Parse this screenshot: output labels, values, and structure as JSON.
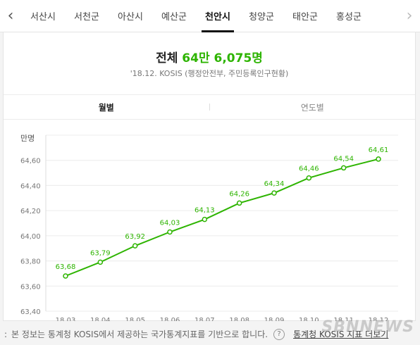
{
  "tabs": {
    "items": [
      "서산시",
      "서천군",
      "아산시",
      "예산군",
      "천안시",
      "청양군",
      "태안군",
      "홍성군"
    ],
    "active_index": 4
  },
  "summary": {
    "label": "전체",
    "value": "64만 6,075명",
    "source": "'18.12. KOSIS (행정안전부, 주민등록인구현황)"
  },
  "modes": {
    "monthly": "월별",
    "yearly": "연도별"
  },
  "footer": {
    "note": "본 정보는 통계청 KOSIS에서 제공하는 국가통계지표를 기반으로 합니다.",
    "link": "통계청 KOSIS 지표 더보기",
    "watermark": "SBNNEWS"
  },
  "colors": {
    "accent": "#2db400"
  },
  "chart_data": {
    "type": "line",
    "title": "",
    "unit": "만명",
    "xlabel": "",
    "ylabel": "",
    "ylim": [
      63.4,
      64.8
    ],
    "yticks": [
      "63,40",
      "63,60",
      "63,80",
      "64,00",
      "64,20",
      "64,40",
      "64,60"
    ],
    "categories": [
      "18,03",
      "18,04",
      "18,05",
      "18,06",
      "18,07",
      "18,08",
      "18,09",
      "18,10",
      "18,11",
      "18,12"
    ],
    "series": [
      {
        "values": [
          63.68,
          63.79,
          63.92,
          64.03,
          64.13,
          64.26,
          64.34,
          64.46,
          64.54,
          64.61
        ],
        "labels": [
          "63,68",
          "63,79",
          "63,92",
          "64,03",
          "64,13",
          "64,26",
          "64,34",
          "64,46",
          "64,54",
          "64,61"
        ]
      }
    ],
    "grid": true,
    "legend": "none"
  }
}
